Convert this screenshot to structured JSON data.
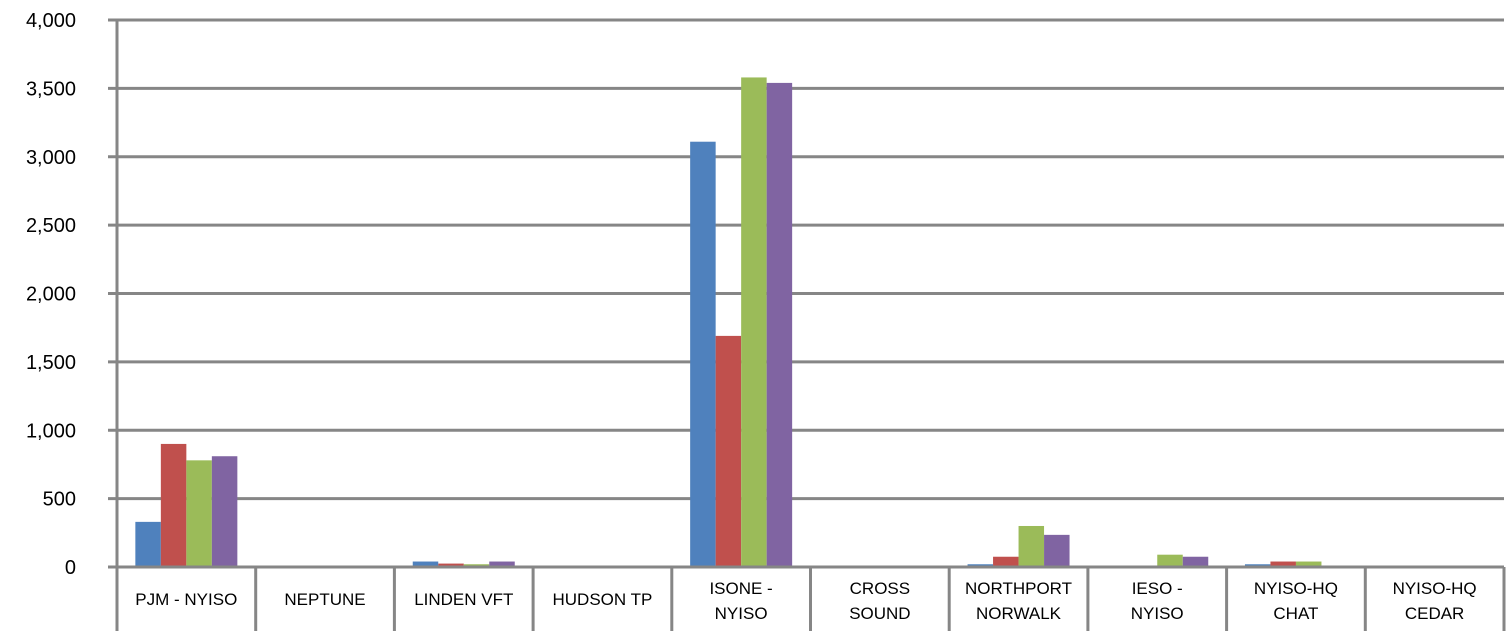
{
  "chart_data": {
    "type": "bar",
    "title": "",
    "xlabel": "",
    "ylabel": "",
    "ylim": [
      0,
      4000
    ],
    "y_ticks": [
      {
        "value": 0,
        "label": "0"
      },
      {
        "value": 500,
        "label": "500"
      },
      {
        "value": 1000,
        "label": "1,000"
      },
      {
        "value": 1500,
        "label": "1,500"
      },
      {
        "value": 2000,
        "label": "2,000"
      },
      {
        "value": 2500,
        "label": "2,500"
      },
      {
        "value": 3000,
        "label": "3,000"
      },
      {
        "value": 3500,
        "label": "3,500"
      },
      {
        "value": 4000,
        "label": "4,000"
      }
    ],
    "grid": true,
    "legend": "none",
    "categories": [
      [
        "PJM - NYISO"
      ],
      [
        "NEPTUNE"
      ],
      [
        "LINDEN VFT"
      ],
      [
        "HUDSON TP"
      ],
      [
        "ISONE -",
        "NYISO"
      ],
      [
        "CROSS",
        "SOUND"
      ],
      [
        "NORTHPORT",
        "NORWALK"
      ],
      [
        "IESO -",
        "NYISO"
      ],
      [
        "NYISO-HQ",
        "CHAT"
      ],
      [
        "NYISO-HQ",
        "CEDAR"
      ]
    ],
    "series": [
      {
        "color": "#4F81BD",
        "values": [
          330,
          0,
          40,
          0,
          3110,
          0,
          20,
          0,
          20,
          0
        ]
      },
      {
        "color": "#C0504D",
        "values": [
          900,
          0,
          25,
          0,
          1690,
          0,
          75,
          0,
          40,
          0
        ]
      },
      {
        "color": "#9BBB59",
        "values": [
          780,
          0,
          20,
          0,
          3580,
          0,
          300,
          90,
          40,
          0
        ]
      },
      {
        "color": "#8064A2",
        "values": [
          810,
          0,
          40,
          0,
          3540,
          0,
          235,
          75,
          0,
          0
        ]
      }
    ]
  }
}
